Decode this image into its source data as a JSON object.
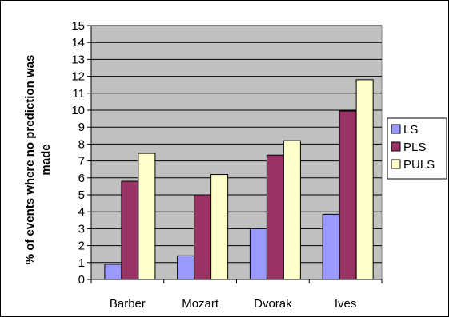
{
  "chart_data": {
    "type": "bar",
    "categories": [
      "Barber",
      "Mozart",
      "Dvorak",
      "Ives"
    ],
    "series": [
      {
        "name": "LS",
        "values": [
          0.9,
          1.4,
          3.0,
          3.85
        ],
        "color": "#9999ff"
      },
      {
        "name": "PLS",
        "values": [
          5.8,
          5.0,
          7.35,
          9.95
        ],
        "color": "#993366"
      },
      {
        "name": "PULS",
        "values": [
          7.45,
          6.2,
          8.2,
          11.8
        ],
        "color": "#ffffcc"
      }
    ],
    "ylabel_lines": [
      "% of events where no prediction was",
      "made"
    ],
    "ylim": [
      0,
      15
    ],
    "yticks": [
      0,
      1,
      2,
      3,
      4,
      5,
      6,
      7,
      8,
      9,
      10,
      11,
      12,
      13,
      14,
      15
    ],
    "grid": true,
    "plot_background": "#c0c0c0",
    "legend_position": "right"
  }
}
